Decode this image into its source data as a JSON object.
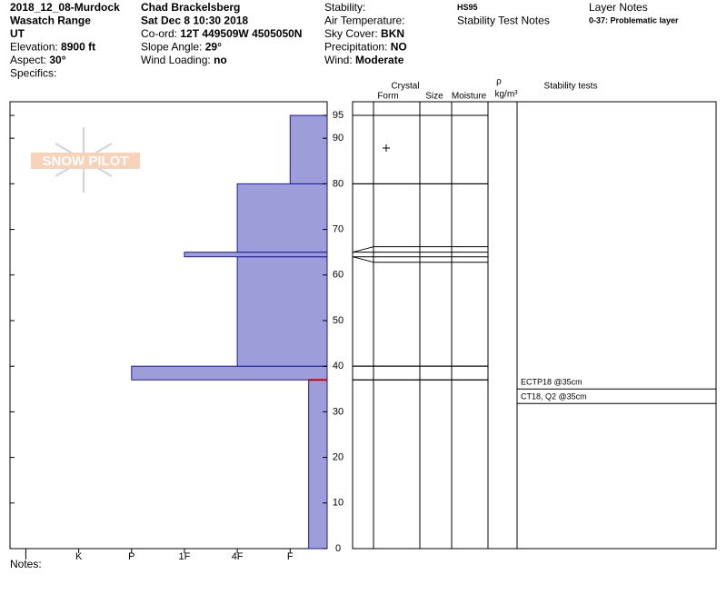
{
  "header": {
    "columns": [
      [
        {
          "value": "2018_12_08-Murdock"
        },
        {
          "value": "Wasatch Range"
        },
        {
          "value": "UT"
        },
        {
          "label": "Elevation:",
          "value": "8900 ft"
        },
        {
          "label": "Aspect:",
          "value": "30°"
        },
        {
          "label": "Specifics:"
        }
      ],
      [
        {
          "value": "Chad Brackelsberg"
        },
        {
          "value": "Sat Dec 8 10:30 2018"
        },
        {
          "label": "Co-ord:",
          "value": "12T 449509W 4505050N"
        },
        {
          "label": "Slope Angle:",
          "value": "29°"
        },
        {
          "label": "Wind Loading:",
          "value": "no"
        }
      ],
      [
        {
          "label": "Stability:"
        },
        {
          "label": "Air Temperature:"
        },
        {
          "label": "Sky Cover:",
          "value": "BKN"
        },
        {
          "label": "Precipitation:",
          "value": "NO"
        },
        {
          "label": "Wind:",
          "value": "Moderate"
        }
      ],
      [
        {
          "value": "HS95"
        },
        {
          "label": "Stability Test Notes"
        }
      ],
      [
        {
          "label": "Layer Notes"
        },
        {
          "value": "0-37: Problematic layer"
        }
      ]
    ]
  },
  "logo": "SNOW PILOT",
  "notes_label": "Notes:",
  "chart_data": {
    "type": "snowprofile",
    "columns": {
      "crystal": "Crystal",
      "form": "Form",
      "size": "Size",
      "moisture": "Moisture",
      "rho": "ρ",
      "density_unit": "kg/m³",
      "stability": "Stability tests"
    },
    "layers": [
      {
        "bottom": 0,
        "top": 37,
        "hardness": 0.65
      },
      {
        "bottom": 37,
        "top": 40,
        "hardness": 4
      },
      {
        "bottom": 40,
        "top": 64,
        "hardness": 2
      },
      {
        "bottom": 64,
        "top": 65,
        "hardness": 3
      },
      {
        "bottom": 65,
        "top": 80,
        "hardness": 2
      },
      {
        "bottom": 80,
        "top": 95,
        "hardness": 1
      }
    ],
    "color": "#9d9dd9",
    "edge_color": "#1a1aa0",
    "problem_layer": {
      "depth": 37,
      "color": "#cc0000"
    },
    "stability_tests": [
      {
        "label": "ECTP18 @35cm",
        "depth": 35
      },
      {
        "label": "CT18, Q2 @35cm",
        "depth": 35
      }
    ],
    "ylim": [
      0,
      98
    ],
    "yticks": [
      0,
      10,
      20,
      30,
      40,
      50,
      60,
      70,
      80,
      90,
      95
    ],
    "xlim": [
      6.3,
      0.3
    ],
    "xticks": [
      {
        "value": 6,
        "label": "I"
      },
      {
        "value": 5,
        "label": "K"
      },
      {
        "value": 4,
        "label": "P"
      },
      {
        "value": 3,
        "label": "1F"
      },
      {
        "value": 2,
        "label": "4F"
      },
      {
        "value": 1,
        "label": "F"
      }
    ]
  }
}
